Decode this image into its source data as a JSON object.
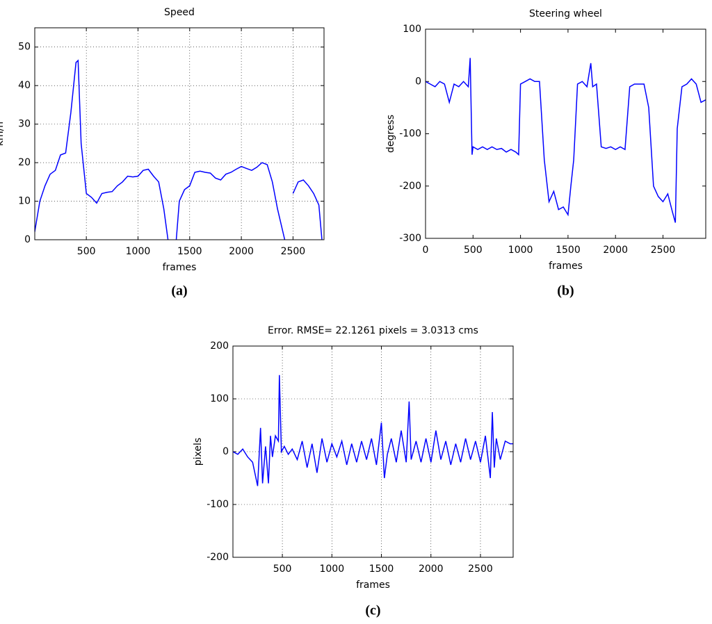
{
  "chart_data": [
    {
      "type": "line",
      "title": "Speed",
      "caption": "(a)",
      "xlabel": "frames",
      "ylabel": "km/h",
      "xlim": [
        1,
        2800
      ],
      "xticks": [
        500,
        1000,
        1500,
        2000,
        2500
      ],
      "ylim": [
        0,
        55
      ],
      "yticks": [
        0,
        10,
        20,
        30,
        40,
        50
      ],
      "grid": true,
      "x": [
        0,
        50,
        100,
        150,
        200,
        250,
        300,
        350,
        400,
        420,
        450,
        500,
        550,
        600,
        650,
        700,
        750,
        800,
        850,
        900,
        950,
        1000,
        1050,
        1100,
        1150,
        1200,
        1250,
        1290,
        1330,
        1370,
        1400,
        1450,
        1500,
        1550,
        1600,
        1650,
        1700,
        1750,
        1800,
        1850,
        1900,
        1950,
        2000,
        2050,
        2100,
        2150,
        2200,
        2250,
        2300,
        2350,
        2420,
        2460,
        2500,
        2550,
        2600,
        2650,
        2700,
        2750,
        2780
      ],
      "series": [
        {
          "name": "speed",
          "color": "#0000ff",
          "values": [
            2,
            10,
            14,
            17,
            18,
            22,
            22.5,
            33,
            46,
            46.5,
            25,
            12,
            11,
            9.5,
            12,
            12.3,
            12.5,
            14,
            15,
            16.5,
            16.3,
            16.5,
            18,
            18.3,
            16.5,
            15,
            8,
            0,
            null,
            0,
            10,
            13,
            14,
            17.5,
            17.8,
            17.5,
            17.3,
            16,
            15.5,
            17,
            17.5,
            18.3,
            19,
            18.5,
            18,
            18.8,
            20,
            19.5,
            15,
            8,
            0,
            null,
            12,
            15,
            15.5,
            14,
            12,
            9,
            0
          ]
        }
      ]
    },
    {
      "type": "line",
      "title": "Steering wheel",
      "caption": "(b)",
      "xlabel": "frames",
      "ylabel": "degress",
      "xlim": [
        0,
        2950
      ],
      "xticks": [
        0,
        500,
        1000,
        1500,
        2000,
        2500
      ],
      "ylim": [
        -300,
        100
      ],
      "yticks": [
        -300,
        -200,
        -100,
        0,
        100
      ],
      "grid": false,
      "x": [
        0,
        50,
        100,
        150,
        200,
        250,
        300,
        350,
        400,
        450,
        470,
        490,
        500,
        550,
        600,
        650,
        700,
        750,
        800,
        850,
        900,
        950,
        980,
        1000,
        1050,
        1100,
        1150,
        1200,
        1250,
        1300,
        1350,
        1400,
        1450,
        1500,
        1530,
        1560,
        1600,
        1650,
        1700,
        1740,
        1760,
        1800,
        1850,
        1900,
        1950,
        2000,
        2050,
        2100,
        2150,
        2200,
        2250,
        2300,
        2350,
        2400,
        2450,
        2500,
        2550,
        2600,
        2630,
        2650,
        2700,
        2750,
        2800,
        2850,
        2900,
        2950
      ],
      "series": [
        {
          "name": "steering",
          "color": "#0000ff",
          "values": [
            0,
            -5,
            -10,
            0,
            -5,
            -40,
            -5,
            -10,
            0,
            -10,
            45,
            -140,
            -125,
            -130,
            -125,
            -130,
            -125,
            -130,
            -128,
            -135,
            -130,
            -135,
            -140,
            -5,
            0,
            5,
            0,
            0,
            -150,
            -230,
            -210,
            -245,
            -240,
            -255,
            -200,
            -150,
            -5,
            0,
            -10,
            35,
            -10,
            -5,
            -125,
            -128,
            -125,
            -130,
            -125,
            -130,
            -10,
            -5,
            -5,
            -5,
            -50,
            -200,
            -220,
            -230,
            -215,
            -250,
            -270,
            -90,
            -10,
            -5,
            5,
            -5,
            -40,
            -35
          ]
        }
      ]
    },
    {
      "type": "line",
      "title": "Error. RMSE= 22.1261 pixels = 3.0313 cms",
      "caption": "(c)",
      "xlabel": "frames",
      "ylabel": "pixels",
      "xlim": [
        1,
        2830
      ],
      "xticks": [
        500,
        1000,
        1500,
        2000,
        2500
      ],
      "ylim": [
        -200,
        200
      ],
      "yticks": [
        -200,
        -100,
        0,
        100,
        200
      ],
      "grid": true,
      "x": [
        0,
        50,
        100,
        150,
        200,
        250,
        280,
        300,
        330,
        360,
        380,
        400,
        430,
        460,
        470,
        490,
        520,
        560,
        600,
        650,
        700,
        750,
        800,
        850,
        900,
        950,
        1000,
        1050,
        1100,
        1150,
        1200,
        1250,
        1300,
        1350,
        1400,
        1450,
        1500,
        1530,
        1560,
        1600,
        1650,
        1700,
        1750,
        1780,
        1800,
        1850,
        1900,
        1950,
        2000,
        2050,
        2100,
        2150,
        2200,
        2250,
        2300,
        2350,
        2400,
        2450,
        2500,
        2550,
        2600,
        2620,
        2640,
        2660,
        2700,
        2750,
        2800,
        2830
      ],
      "series": [
        {
          "name": "error",
          "color": "#0000ff",
          "values": [
            0,
            -5,
            5,
            -10,
            -20,
            -65,
            45,
            -60,
            10,
            -60,
            30,
            -10,
            30,
            20,
            145,
            0,
            10,
            -5,
            5,
            -15,
            20,
            -30,
            15,
            -40,
            25,
            -20,
            15,
            -10,
            20,
            -25,
            15,
            -20,
            20,
            -15,
            25,
            -25,
            55,
            -50,
            -5,
            25,
            -20,
            40,
            -20,
            95,
            -15,
            20,
            -20,
            25,
            -20,
            40,
            -15,
            20,
            -25,
            15,
            -20,
            25,
            -15,
            20,
            -20,
            30,
            -50,
            75,
            -30,
            25,
            -15,
            20,
            15,
            15
          ]
        }
      ]
    }
  ]
}
